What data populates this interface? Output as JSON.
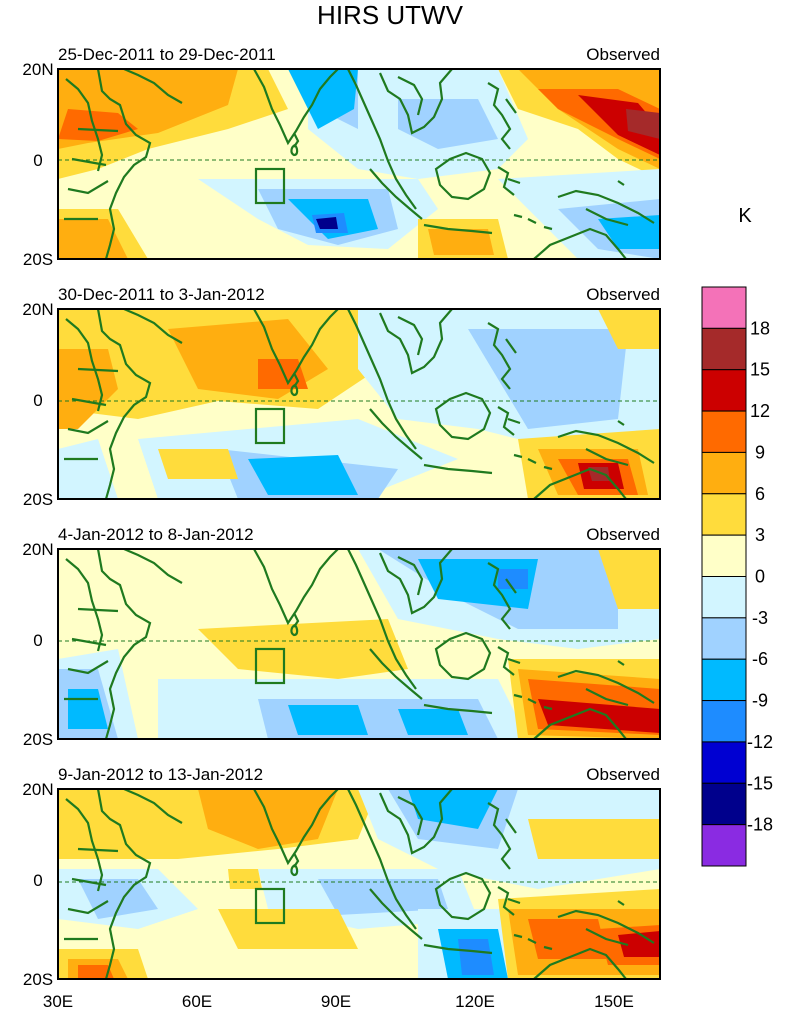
{
  "title": "HIRS UTWV",
  "colorbar": {
    "unit": "K",
    "levels": [
      "18",
      "15",
      "12",
      "9",
      "6",
      "3",
      "0",
      "-3",
      "-6",
      "-9",
      "-12",
      "-15",
      "-18"
    ],
    "colors": [
      "#f472b8",
      "#a52a2a",
      "#cc0000",
      "#ff6a00",
      "#ffae10",
      "#ffdc3c",
      "#ffffc8",
      "#d2f5ff",
      "#a0d2ff",
      "#00baff",
      "#1e8cff",
      "#0000d2",
      "#00008c",
      "#8a2be2"
    ]
  },
  "axis": {
    "lat_labels": [
      "20N",
      "0",
      "20S"
    ],
    "lon_labels": [
      "30E",
      "60E",
      "90E",
      "120E",
      "150E"
    ]
  },
  "panels": [
    {
      "period": "25-Dec-2011 to 29-Dec-2011",
      "source": "Observed"
    },
    {
      "period": "30-Dec-2011 to 3-Jan-2012",
      "source": "Observed"
    },
    {
      "period": "4-Jan-2012 to 8-Jan-2012",
      "source": "Observed"
    },
    {
      "period": "9-Jan-2012 to 13-Jan-2012",
      "source": "Observed"
    }
  ],
  "colors": {
    "coast": "#1f7a1f",
    "frame": "#000000"
  }
}
